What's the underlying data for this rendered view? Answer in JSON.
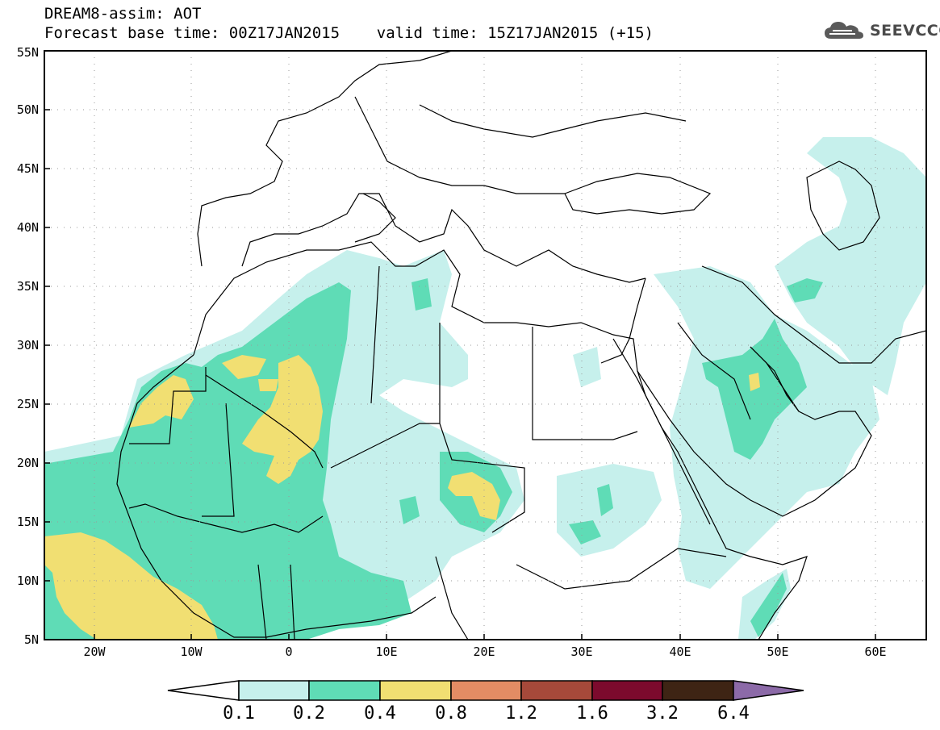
{
  "header": {
    "line1": "DREAM8-assim: AOT",
    "line2": "Forecast base time: 00Z17JAN2015    valid time: 15Z17JAN2015 (+15)"
  },
  "logo": {
    "text": "SEEVCCC",
    "icon": "cloud-logo-icon"
  },
  "map": {
    "lon_range": [
      -25,
      65
    ],
    "lat_range": [
      5,
      55
    ],
    "lat_ticks": [
      "5N",
      "10N",
      "15N",
      "20N",
      "25N",
      "30N",
      "35N",
      "40N",
      "45N",
      "50N",
      "55N"
    ],
    "lon_ticks": [
      "20W",
      "10W",
      "0",
      "10E",
      "20E",
      "30E",
      "40E",
      "50E",
      "60E"
    ],
    "grid": "dotted"
  },
  "colors": {
    "level_0": "#c6f0ec",
    "level_1": "#5fdcb6",
    "level_2": "#f1df72",
    "level_3": "#e38c64",
    "level_4": "#a6493a",
    "level_5": "#7c0a2d",
    "level_6": "#3e2414",
    "level_7": "#8c6aa8",
    "border": "#000000"
  },
  "colorbar": {
    "labels": [
      "0.1",
      "0.2",
      "0.4",
      "0.8",
      "1.2",
      "1.6",
      "3.2",
      "6.4"
    ],
    "left_arrow_color": "#ffffff",
    "right_arrow_color": "#8c6aa8",
    "segment_colors": [
      "#c6f0ec",
      "#5fdcb6",
      "#f1df72",
      "#e38c64",
      "#a6493a",
      "#7c0a2d",
      "#3e2414"
    ]
  }
}
